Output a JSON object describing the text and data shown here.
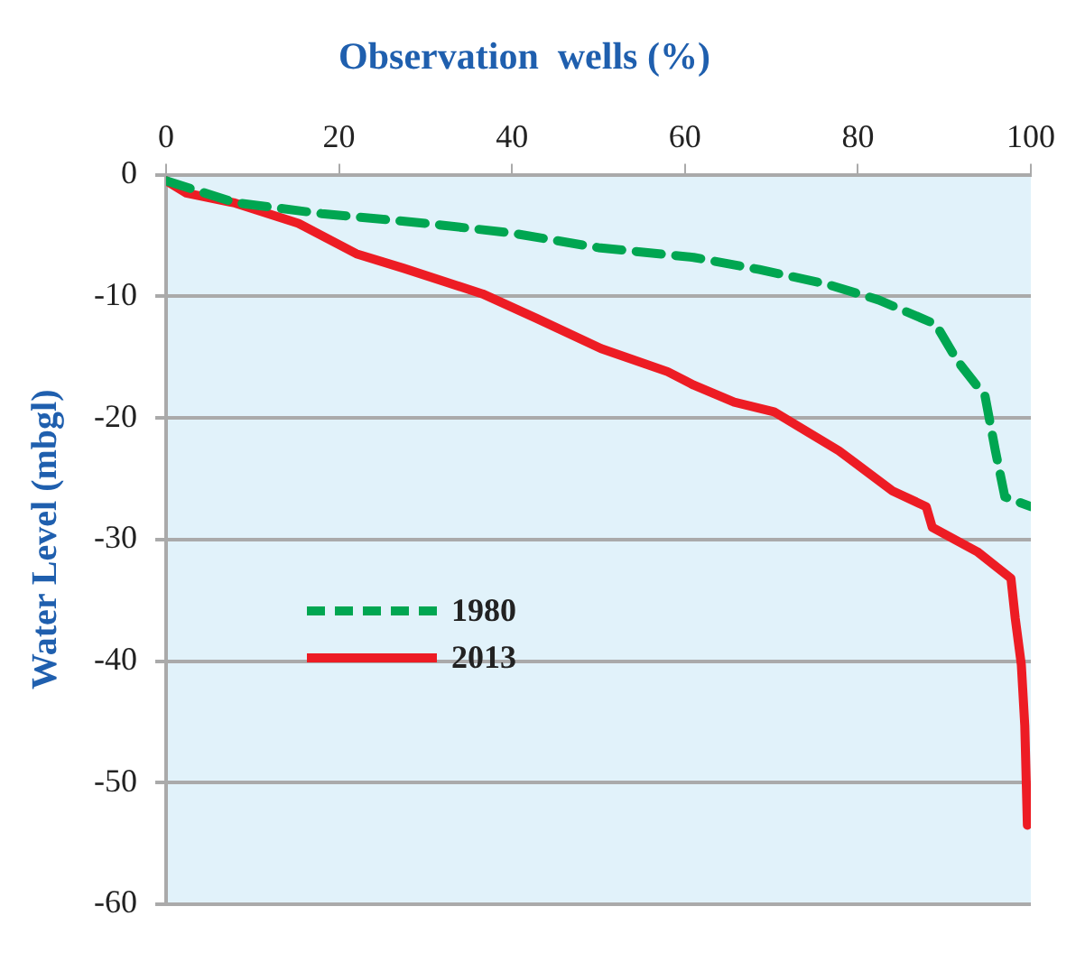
{
  "chart_data": {
    "type": "line",
    "title": "Observation  wells (%)",
    "ylabel": "Water Level (mbgl)",
    "xlim": [
      0,
      100
    ],
    "xticks": [
      0,
      20,
      40,
      60,
      80,
      100
    ],
    "ylim": [
      -60,
      0
    ],
    "yticks": [
      -60,
      -50,
      -40,
      -30,
      -20,
      -10,
      0
    ],
    "grid": "y",
    "legend": "left",
    "marker": "none",
    "series": [
      {
        "name": "1980",
        "color": "#00a651",
        "line_style": "dashed",
        "x": [
          0,
          8,
          18,
          30,
          40,
          50,
          61,
          68.6,
          76.4,
          82.4,
          89,
          91.5,
          94.7,
          95.9,
          97,
          100
        ],
        "values": [
          -0.5,
          -2.3,
          -3.2,
          -4,
          -4.8,
          -6,
          -6.8,
          -7.8,
          -9,
          -10.3,
          -12.3,
          -15.3,
          -18.2,
          -22.7,
          -26.5,
          -27.3
        ]
      },
      {
        "name": "2013",
        "color": "#ed1c24",
        "line_style": "solid",
        "x": [
          0,
          2.3,
          7.8,
          15.3,
          22,
          27.5,
          36.6,
          42.8,
          50.3,
          58,
          61,
          65.7,
          70.3,
          77.8,
          84,
          87.9,
          88.6,
          93.8,
          97.7,
          98.2,
          98.9,
          99.3,
          99.6
        ],
        "values": [
          -0.5,
          -1.5,
          -2.3,
          -4,
          -6.5,
          -7.7,
          -9.8,
          -11.8,
          -14.3,
          -16.2,
          -17.3,
          -18.7,
          -19.5,
          -22.7,
          -26,
          -27.3,
          -29,
          -31,
          -33.2,
          -36.5,
          -40.3,
          -45.3,
          -53.5
        ]
      }
    ]
  }
}
